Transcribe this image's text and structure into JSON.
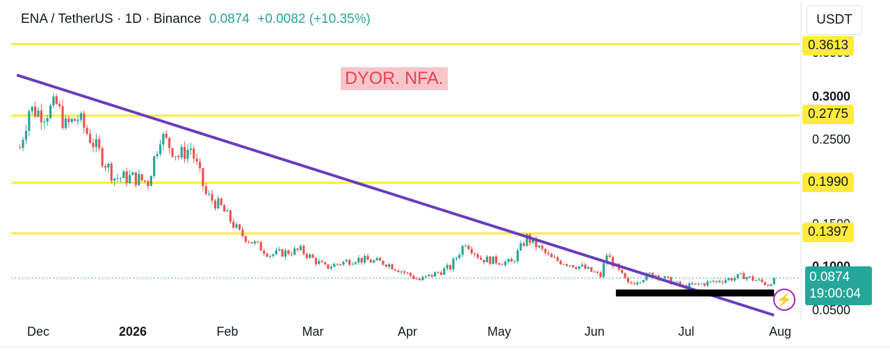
{
  "header": {
    "symbol": "ENA / TetherUS · 1D · Binance",
    "price": "0.0874",
    "change": "+0.0082 (+10.35%)"
  },
  "currency_label": "USDT",
  "annotation": "DYOR. NFA.",
  "colors": {
    "up": "#26a69a",
    "down": "#ef5350",
    "level_line": "#ffeb3b",
    "trendline": "#6a3cbf",
    "support_bar": "#000000"
  },
  "chart_data": {
    "type": "candlestick",
    "x_ticks": [
      "Dec",
      "2026",
      "Feb",
      "Mar",
      "Apr",
      "May",
      "Jun",
      "Jul",
      "Aug"
    ],
    "y_ticks": [
      "0.3500",
      "0.3000",
      "0.2500",
      "0.1500",
      "0.1000",
      "0.0500"
    ],
    "ylim": [
      0.046,
      0.37
    ],
    "horizontal_levels": [
      {
        "label": "0.3613",
        "value": 0.3613
      },
      {
        "label": "0.2775",
        "value": 0.2775
      },
      {
        "label": "0.1990",
        "value": 0.199
      },
      {
        "label": "0.1397",
        "value": 0.1397
      }
    ],
    "current_price": {
      "label": "0.0874",
      "countdown": "19:00:04",
      "value": 0.0874
    },
    "trendline": {
      "from": [
        "2025-11-24",
        0.325
      ],
      "to": [
        "2026-07-30",
        0.044
      ]
    },
    "support_zone": {
      "from": "2026-06-08",
      "to": "2026-07-30",
      "value": 0.07
    },
    "close_path": [
      [
        "2025-11-25",
        0.24
      ],
      [
        "2025-11-28",
        0.285
      ],
      [
        "2025-12-03",
        0.28
      ],
      [
        "2025-12-07",
        0.29
      ],
      [
        "2025-12-10",
        0.265
      ],
      [
        "2025-12-14",
        0.275
      ],
      [
        "2025-12-20",
        0.24
      ],
      [
        "2025-12-26",
        0.205
      ],
      [
        "2026-01-01",
        0.205
      ],
      [
        "2026-01-06",
        0.2
      ],
      [
        "2026-01-10",
        0.255
      ],
      [
        "2026-01-16",
        0.23
      ],
      [
        "2026-01-20",
        0.24
      ],
      [
        "2026-01-25",
        0.185
      ],
      [
        "2026-01-30",
        0.17
      ],
      [
        "2026-02-05",
        0.14
      ],
      [
        "2026-02-15",
        0.115
      ],
      [
        "2026-02-25",
        0.12
      ],
      [
        "2026-03-05",
        0.1
      ],
      [
        "2026-03-15",
        0.11
      ],
      [
        "2026-03-25",
        0.105
      ],
      [
        "2026-04-05",
        0.085
      ],
      [
        "2026-04-15",
        0.1
      ],
      [
        "2026-04-20",
        0.13
      ],
      [
        "2026-04-25",
        0.11
      ],
      [
        "2026-05-05",
        0.105
      ],
      [
        "2026-05-10",
        0.135
      ],
      [
        "2026-05-18",
        0.11
      ],
      [
        "2026-05-28",
        0.1
      ],
      [
        "2026-06-03",
        0.09
      ],
      [
        "2026-06-05",
        0.115
      ],
      [
        "2026-06-12",
        0.08
      ],
      [
        "2026-06-20",
        0.093
      ],
      [
        "2026-06-30",
        0.077
      ],
      [
        "2026-07-10",
        0.083
      ],
      [
        "2026-07-20",
        0.09
      ],
      [
        "2026-07-28",
        0.08
      ],
      [
        "2026-07-30",
        0.0874
      ]
    ]
  }
}
